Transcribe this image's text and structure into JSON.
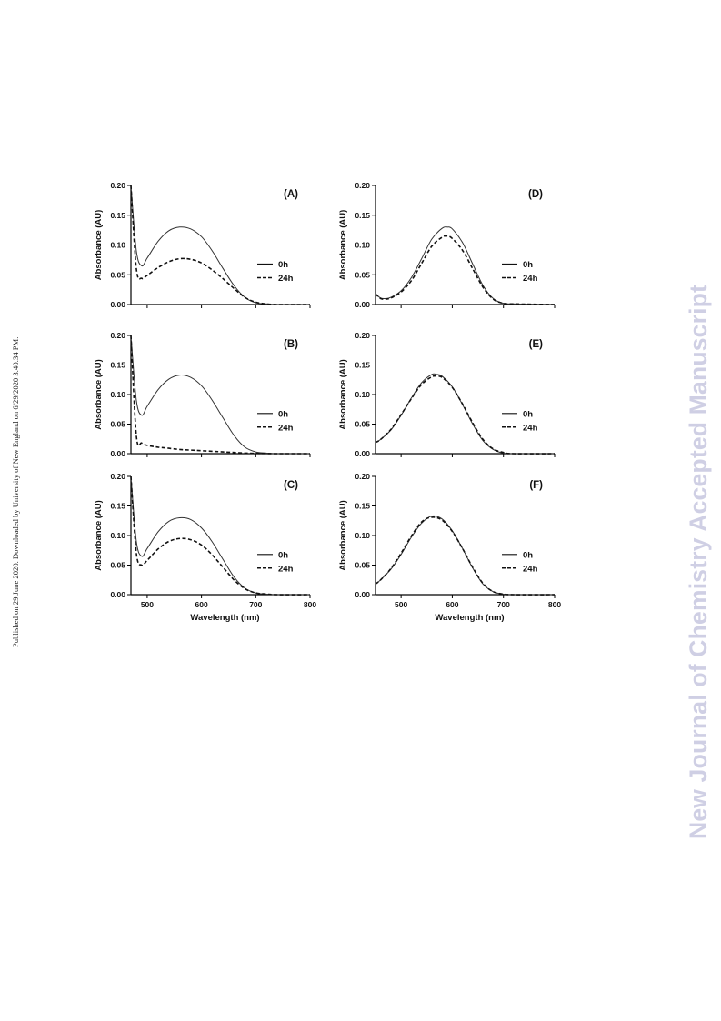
{
  "side_note": "Published on 29 June 2020. Downloaded by University of New England on 6/29/2020 3:40:34 PM.",
  "watermark": "New Journal of Chemistry Accepted Manuscript",
  "chart_data": [
    {
      "type": "line",
      "panel_label": "(A)",
      "ylabel": "Absorbance (AU)",
      "xlabel": "",
      "xlim": [
        470,
        800
      ],
      "ylim": [
        0,
        0.2
      ],
      "yticks": [
        "0.00",
        "0.05",
        "0.10",
        "0.15",
        "0.20"
      ],
      "xticks": [],
      "x": [
        470,
        480,
        490,
        500,
        520,
        540,
        560,
        580,
        600,
        620,
        640,
        660,
        680,
        700,
        720,
        740,
        800
      ],
      "series": [
        {
          "name": "0h",
          "style": "solid",
          "values": [
            0.2,
            0.09,
            0.065,
            0.078,
            0.106,
            0.124,
            0.13,
            0.127,
            0.114,
            0.09,
            0.06,
            0.032,
            0.012,
            0.003,
            0.001,
            0,
            0
          ]
        },
        {
          "name": "24h",
          "style": "dashed",
          "values": [
            0.2,
            0.06,
            0.044,
            0.049,
            0.062,
            0.072,
            0.077,
            0.076,
            0.07,
            0.058,
            0.043,
            0.027,
            0.012,
            0.004,
            0.001,
            0,
            0
          ]
        }
      ]
    },
    {
      "type": "line",
      "panel_label": "(B)",
      "ylabel": "Absorbance (AU)",
      "xlabel": "",
      "xlim": [
        470,
        800
      ],
      "ylim": [
        0,
        0.2
      ],
      "yticks": [
        "0.00",
        "0.05",
        "0.10",
        "0.15",
        "0.20"
      ],
      "xticks": [],
      "x": [
        470,
        480,
        490,
        500,
        520,
        540,
        560,
        580,
        600,
        620,
        640,
        660,
        680,
        700,
        720,
        740,
        800
      ],
      "series": [
        {
          "name": "0h",
          "style": "solid",
          "values": [
            0.2,
            0.09,
            0.065,
            0.08,
            0.108,
            0.126,
            0.133,
            0.129,
            0.115,
            0.09,
            0.06,
            0.031,
            0.011,
            0.003,
            0.001,
            0,
            0
          ]
        },
        {
          "name": "24h",
          "style": "dashed",
          "values": [
            0.2,
            0.03,
            0.018,
            0.014,
            0.011,
            0.009,
            0.007,
            0.006,
            0.005,
            0.004,
            0.003,
            0.002,
            0.001,
            0.0005,
            0.0002,
            0,
            0
          ]
        }
      ]
    },
    {
      "type": "line",
      "panel_label": "(C)",
      "ylabel": "Absorbance (AU)",
      "xlabel": "Wavelength (nm)",
      "xlim": [
        470,
        800
      ],
      "ylim": [
        0,
        0.2
      ],
      "yticks": [
        "0.00",
        "0.05",
        "0.10",
        "0.15",
        "0.20"
      ],
      "xticks": [
        "500",
        "600",
        "700",
        "800"
      ],
      "x": [
        470,
        480,
        490,
        500,
        520,
        540,
        560,
        580,
        600,
        620,
        640,
        660,
        680,
        700,
        720,
        740,
        800
      ],
      "series": [
        {
          "name": "0h",
          "style": "solid",
          "values": [
            0.2,
            0.09,
            0.065,
            0.078,
            0.106,
            0.124,
            0.13,
            0.127,
            0.113,
            0.089,
            0.059,
            0.03,
            0.011,
            0.003,
            0.001,
            0,
            0
          ]
        },
        {
          "name": "24h",
          "style": "dashed",
          "values": [
            0.2,
            0.07,
            0.05,
            0.058,
            0.077,
            0.09,
            0.095,
            0.093,
            0.084,
            0.067,
            0.046,
            0.025,
            0.01,
            0.003,
            0.001,
            0,
            0
          ]
        }
      ]
    },
    {
      "type": "line",
      "panel_label": "(D)",
      "ylabel": "Absorbance (AU)",
      "xlabel": "",
      "xlim": [
        450,
        800
      ],
      "ylim": [
        0,
        0.2
      ],
      "yticks": [
        "0.00",
        "0.05",
        "0.10",
        "0.15",
        "0.20"
      ],
      "xticks": [],
      "x": [
        450,
        460,
        470,
        480,
        500,
        520,
        540,
        560,
        580,
        590,
        600,
        620,
        640,
        660,
        680,
        700,
        720,
        800
      ],
      "series": [
        {
          "name": "0h",
          "style": "solid",
          "values": [
            0.018,
            0.011,
            0.01,
            0.012,
            0.023,
            0.045,
            0.077,
            0.11,
            0.128,
            0.13,
            0.127,
            0.104,
            0.068,
            0.032,
            0.01,
            0.002,
            0.001,
            0
          ]
        },
        {
          "name": "24h",
          "style": "dashed",
          "values": [
            0.018,
            0.01,
            0.009,
            0.011,
            0.021,
            0.04,
            0.069,
            0.098,
            0.113,
            0.115,
            0.111,
            0.091,
            0.06,
            0.029,
            0.009,
            0.002,
            0.001,
            0
          ]
        }
      ]
    },
    {
      "type": "line",
      "panel_label": "(E)",
      "ylabel": "Absorbance (AU)",
      "xlabel": "",
      "xlim": [
        450,
        800
      ],
      "ylim": [
        0,
        0.2
      ],
      "yticks": [
        "0.00",
        "0.05",
        "0.10",
        "0.15",
        "0.20"
      ],
      "xticks": [],
      "x": [
        450,
        460,
        480,
        500,
        520,
        540,
        560,
        570,
        580,
        600,
        620,
        640,
        660,
        680,
        700,
        720,
        800
      ],
      "series": [
        {
          "name": "0h",
          "style": "solid",
          "values": [
            0.019,
            0.024,
            0.04,
            0.065,
            0.094,
            0.12,
            0.134,
            0.134,
            0.131,
            0.113,
            0.083,
            0.05,
            0.022,
            0.007,
            0.001,
            0,
            0
          ]
        },
        {
          "name": "24h",
          "style": "dashed",
          "values": [
            0.019,
            0.024,
            0.041,
            0.066,
            0.093,
            0.117,
            0.13,
            0.131,
            0.129,
            0.112,
            0.084,
            0.052,
            0.024,
            0.008,
            0.002,
            0,
            0
          ]
        }
      ]
    },
    {
      "type": "line",
      "panel_label": "(F)",
      "ylabel": "Absorbance (AU)",
      "xlabel": "Wavelength (nm)",
      "xlim": [
        450,
        800
      ],
      "ylim": [
        0,
        0.2
      ],
      "yticks": [
        "0.00",
        "0.05",
        "0.10",
        "0.15",
        "0.20"
      ],
      "xticks": [
        "500",
        "600",
        "700",
        "800"
      ],
      "x": [
        450,
        460,
        480,
        500,
        520,
        540,
        560,
        580,
        600,
        620,
        640,
        660,
        680,
        700,
        720,
        800
      ],
      "series": [
        {
          "name": "0h",
          "style": "solid",
          "values": [
            0.018,
            0.025,
            0.043,
            0.068,
            0.097,
            0.121,
            0.133,
            0.128,
            0.108,
            0.078,
            0.045,
            0.018,
            0.005,
            0.001,
            0,
            0
          ]
        },
        {
          "name": "24h",
          "style": "dashed",
          "values": [
            0.018,
            0.025,
            0.044,
            0.07,
            0.099,
            0.123,
            0.131,
            0.126,
            0.107,
            0.078,
            0.046,
            0.019,
            0.005,
            0.001,
            0,
            0
          ]
        }
      ]
    }
  ]
}
